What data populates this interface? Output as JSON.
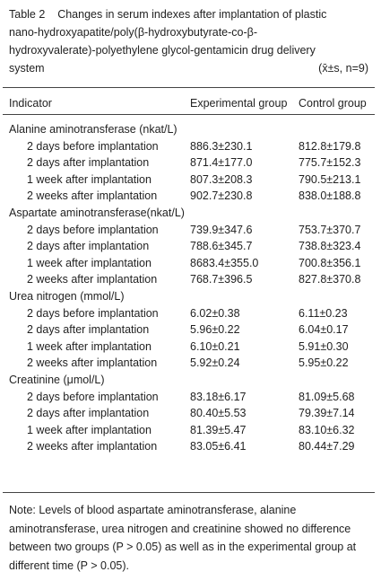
{
  "caption": {
    "lines": [
      "Table 2    Changes in serum indexes after implantation of plastic",
      "nano-hydroxyapatite/poly(β-hydroxybutyrate-co-β-",
      "hydroxyvalerate)-polyethylene glycol-gentamicin drug delivery",
      "system"
    ],
    "stats": "(x̄±s, n=9)"
  },
  "table": {
    "headers": [
      "Indicator",
      "Experimental group",
      "Control group"
    ],
    "groups": [
      {
        "name": "Alanine aminotransferase (nkat/L)",
        "rows": [
          [
            "2 days before implantation",
            "886.3±230.1",
            "812.8±179.8"
          ],
          [
            "2 days after implantation",
            "871.4±177.0",
            "775.7±152.3"
          ],
          [
            "1 week after implantation",
            "807.3±208.3",
            "790.5±213.1"
          ],
          [
            "2 weeks after implantation",
            "902.7±230.8",
            "838.0±188.8"
          ]
        ]
      },
      {
        "name": "Aspartate aminotransferase(nkat/L)",
        "rows": [
          [
            "2 days before implantation",
            "739.9±347.6",
            "753.7±370.7"
          ],
          [
            "2 days after implantation",
            "788.6±345.7",
            "738.8±323.4"
          ],
          [
            "1 week after implantation",
            "8683.4±355.0",
            "700.8±356.1"
          ],
          [
            "2 weeks after implantation",
            "768.7±396.5",
            "827.8±370.8"
          ]
        ]
      },
      {
        "name": "Urea nitrogen (mmol/L)",
        "rows": [
          [
            "2 days before implantation",
            "6.02±0.38",
            "6.11±0.23"
          ],
          [
            "2 days after implantation",
            "5.96±0.22",
            "6.04±0.17"
          ],
          [
            "1 week after implantation",
            "6.10±0.21",
            "5.91±0.30"
          ],
          [
            "2 weeks after implantation",
            "5.92±0.24",
            "5.95±0.22"
          ]
        ]
      },
      {
        "name": "Creatinine (μmol/L)",
        "rows": [
          [
            "2 days before implantation",
            "83.18±6.17",
            "81.09±5.68"
          ],
          [
            "2 days after implantation",
            "80.40±5.53",
            "79.39±7.14"
          ],
          [
            "1 week after implantation",
            "81.39±5.47",
            "83.10±6.32"
          ],
          [
            "2 weeks after implantation",
            "83.05±6.41",
            "80.44±7.29"
          ]
        ]
      }
    ]
  },
  "note": {
    "lines": [
      "Note: Levels of blood aspartate aminotransferase, alanine",
      "aminotransferase, urea nitrogen and creatinine showed no difference",
      "between two groups (P > 0.05) as well as in the experimental group at",
      "different time (P > 0.05)."
    ]
  }
}
